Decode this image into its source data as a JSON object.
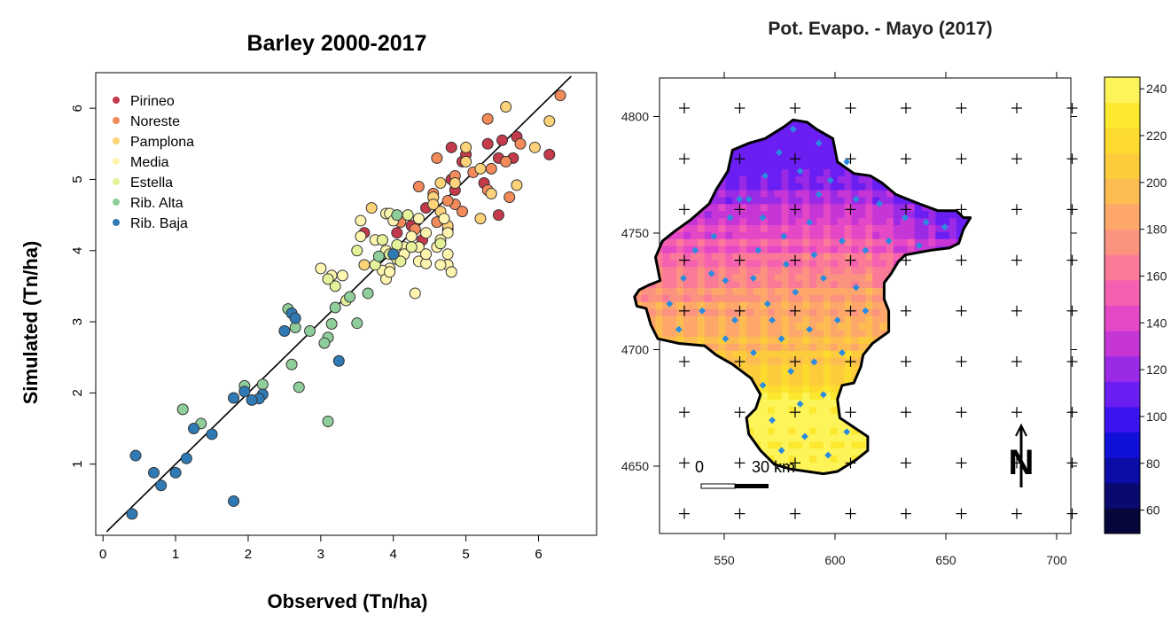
{
  "chart_data": [
    {
      "type": "scatter",
      "title": "Barley 2000-2017",
      "xlabel": "Observed (Tn/ha)",
      "ylabel": "Simulated (Tn/ha)",
      "xlim": [
        -0.1,
        6.8
      ],
      "ylim": [
        0,
        6.5
      ],
      "xticks": [
        "0",
        "1",
        "2",
        "3",
        "4",
        "5",
        "6"
      ],
      "yticks": [
        "1",
        "2",
        "3",
        "4",
        "5",
        "6"
      ],
      "reference_line": "1:1",
      "legend_position": "top-left",
      "series": [
        {
          "name": "Pirineo",
          "color": "#c53a4a",
          "points": [
            [
              4.8,
              5.45
            ],
            [
              5.3,
              5.5
            ],
            [
              5.5,
              5.55
            ],
            [
              5.65,
              5.3
            ],
            [
              5.45,
              5.3
            ],
            [
              6.15,
              5.35
            ],
            [
              5.45,
              4.5
            ],
            [
              4.85,
              4.85
            ],
            [
              4.95,
              5.25
            ],
            [
              4.8,
              5.0
            ],
            [
              4.55,
              4.75
            ],
            [
              4.25,
              4.35
            ],
            [
              4.05,
              4.25
            ],
            [
              4.4,
              4.15
            ],
            [
              3.6,
              4.25
            ],
            [
              4.75,
              4.3
            ],
            [
              5.7,
              5.6
            ],
            [
              4.45,
              4.6
            ],
            [
              5.0,
              5.35
            ],
            [
              5.25,
              4.95
            ]
          ]
        },
        {
          "name": "Noreste",
          "color": "#f28a5a",
          "points": [
            [
              6.3,
              6.18
            ],
            [
              5.3,
              5.85
            ],
            [
              5.75,
              5.5
            ],
            [
              5.55,
              5.25
            ],
            [
              4.6,
              5.3
            ],
            [
              4.35,
              4.9
            ],
            [
              5.1,
              5.1
            ],
            [
              5.3,
              4.85
            ],
            [
              4.85,
              5.05
            ],
            [
              5.6,
              4.75
            ],
            [
              4.85,
              4.65
            ],
            [
              4.75,
              4.7
            ],
            [
              4.6,
              4.4
            ],
            [
              4.55,
              4.8
            ],
            [
              4.3,
              4.3
            ],
            [
              4.95,
              4.55
            ],
            [
              5.35,
              5.15
            ],
            [
              4.1,
              4.4
            ]
          ]
        },
        {
          "name": "Pamplona",
          "color": "#fdd37a",
          "points": [
            [
              5.55,
              6.02
            ],
            [
              6.15,
              5.82
            ],
            [
              5.95,
              5.45
            ],
            [
              5.0,
              5.45
            ],
            [
              5.0,
              5.25
            ],
            [
              5.7,
              4.92
            ],
            [
              5.2,
              4.45
            ],
            [
              4.85,
              4.95
            ],
            [
              4.65,
              4.95
            ],
            [
              4.65,
              4.55
            ],
            [
              4.75,
              4.35
            ],
            [
              4.55,
              4.75
            ],
            [
              3.7,
              4.6
            ],
            [
              3.6,
              3.8
            ],
            [
              5.2,
              5.15
            ],
            [
              5.35,
              4.8
            ],
            [
              4.55,
              4.65
            ]
          ]
        },
        {
          "name": "Media",
          "color": "#fef5b0",
          "points": [
            [
              3.55,
              4.42
            ],
            [
              3.9,
              4.52
            ],
            [
              3.95,
              4.52
            ],
            [
              4.0,
              4.42
            ],
            [
              4.35,
              4.45
            ],
            [
              4.25,
              4.2
            ],
            [
              4.45,
              4.25
            ],
            [
              4.75,
              4.25
            ],
            [
              4.65,
              4.15
            ],
            [
              4.35,
              4.05
            ],
            [
              4.15,
              4.05
            ],
            [
              3.9,
              4.0
            ],
            [
              4.05,
              3.88
            ],
            [
              3.95,
              3.75
            ],
            [
              3.85,
              3.72
            ],
            [
              4.15,
              3.95
            ],
            [
              4.35,
              3.85
            ],
            [
              4.45,
              3.82
            ],
            [
              4.75,
              3.95
            ],
            [
              4.75,
              3.8
            ],
            [
              4.65,
              3.8
            ],
            [
              4.8,
              3.7
            ],
            [
              3.0,
              3.75
            ],
            [
              3.15,
              3.65
            ],
            [
              3.3,
              3.65
            ],
            [
              3.55,
              4.2
            ],
            [
              3.75,
              4.15
            ],
            [
              3.9,
              3.6
            ],
            [
              3.95,
              3.7
            ],
            [
              4.3,
              3.4
            ],
            [
              4.6,
              4.05
            ],
            [
              4.7,
              4.45
            ],
            [
              4.45,
              3.95
            ]
          ]
        },
        {
          "name": "Estella",
          "color": "#e6f29a",
          "points": [
            [
              4.2,
              4.5
            ],
            [
              3.85,
              4.15
            ],
            [
              4.05,
              4.08
            ],
            [
              4.25,
              4.05
            ],
            [
              3.95,
              3.95
            ],
            [
              4.1,
              3.85
            ],
            [
              3.75,
              3.8
            ],
            [
              3.2,
              3.5
            ],
            [
              3.1,
              3.6
            ],
            [
              3.5,
              4.0
            ],
            [
              4.65,
              4.1
            ],
            [
              3.35,
              3.3
            ]
          ]
        },
        {
          "name": "Rib. Alta",
          "color": "#8fce9a",
          "points": [
            [
              4.05,
              4.5
            ],
            [
              3.8,
              3.92
            ],
            [
              3.65,
              3.4
            ],
            [
              3.4,
              3.35
            ],
            [
              3.2,
              3.2
            ],
            [
              2.55,
              3.18
            ],
            [
              2.65,
              2.92
            ],
            [
              2.85,
              2.87
            ],
            [
              3.15,
              2.97
            ],
            [
              3.5,
              2.98
            ],
            [
              3.1,
              2.78
            ],
            [
              3.05,
              2.7
            ],
            [
              2.6,
              2.4
            ],
            [
              2.7,
              2.08
            ],
            [
              2.2,
              2.12
            ],
            [
              1.95,
              2.1
            ],
            [
              1.35,
              1.57
            ],
            [
              1.1,
              1.77
            ],
            [
              3.1,
              1.6
            ]
          ]
        },
        {
          "name": "Rib. Baja",
          "color": "#2f7ab5",
          "points": [
            [
              4.0,
              3.95
            ],
            [
              2.5,
              2.87
            ],
            [
              2.6,
              3.12
            ],
            [
              2.65,
              3.05
            ],
            [
              3.25,
              2.45
            ],
            [
              2.2,
              1.98
            ],
            [
              2.15,
              1.92
            ],
            [
              2.05,
              1.9
            ],
            [
              1.95,
              2.02
            ],
            [
              1.8,
              1.93
            ],
            [
              1.5,
              1.42
            ],
            [
              1.25,
              1.5
            ],
            [
              1.15,
              1.08
            ],
            [
              0.45,
              1.12
            ],
            [
              0.7,
              0.88
            ],
            [
              1.0,
              0.88
            ],
            [
              0.8,
              0.7
            ],
            [
              1.8,
              0.48
            ],
            [
              0.4,
              0.3
            ]
          ]
        }
      ]
    },
    {
      "type": "heatmap",
      "title": "Pot. Evapo. - Mayo (2017)",
      "xlim": [
        540,
        690
      ],
      "ylim": [
        4625,
        4808
      ],
      "xticks": [
        "550",
        "600",
        "650",
        "700"
      ],
      "yticks": [
        "4650",
        "4700",
        "4750",
        "4800"
      ],
      "colorbar_ticks": [
        "60",
        "80",
        "100",
        "120",
        "140",
        "160",
        "180",
        "200",
        "220",
        "240"
      ],
      "colorbar_range": [
        50,
        245
      ],
      "colorbar_colors": [
        "#06063a",
        "#0a0a6e",
        "#0c0ca6",
        "#1010d8",
        "#3b12f0",
        "#6a1ef2",
        "#9a2ae6",
        "#c636d6",
        "#e448c6",
        "#f560b0",
        "#fa7a98",
        "#fc9280",
        "#fda86a",
        "#fdbc52",
        "#fdcc3c",
        "#fddb2e",
        "#fde830",
        "#fdf45a"
      ],
      "scale_bar": {
        "start": "0",
        "end": "30 km"
      },
      "north_arrow": "N",
      "station_color": "#2a8be0"
    }
  ]
}
